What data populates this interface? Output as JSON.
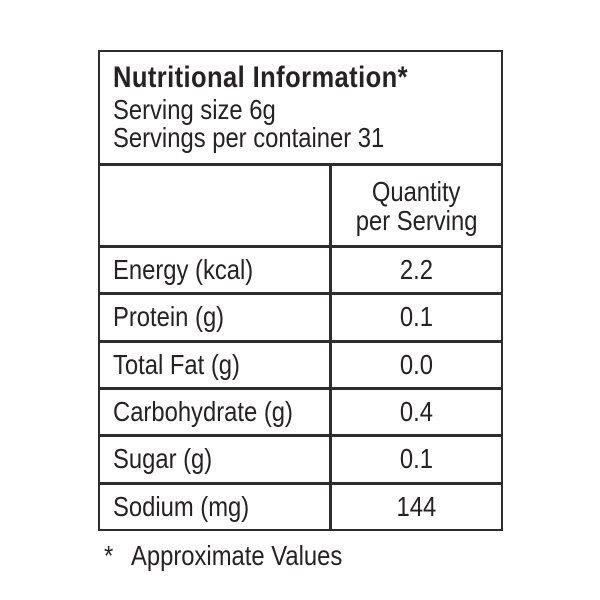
{
  "label": {
    "title": "Nutritional Information*",
    "serving_size": "Serving size 6g",
    "servings_per_container": "Servings per container 31",
    "column_header_line1": "Quantity",
    "column_header_line2": "per Serving",
    "rows": [
      {
        "label": "Energy (kcal)",
        "value": "2.2"
      },
      {
        "label": "Protein (g)",
        "value": "0.1"
      },
      {
        "label": "Total Fat (g)",
        "value": "0.0"
      },
      {
        "label": "Carbohydrate (g)",
        "value": "0.4"
      },
      {
        "label": "Sugar (g)",
        "value": "0.1"
      },
      {
        "label": "Sodium (mg)",
        "value": "144"
      }
    ],
    "footnote_marker": "*",
    "footnote_text": "Approximate Values"
  },
  "colors": {
    "text": "#262223",
    "border": "#302c2d",
    "background": "#ffffff"
  }
}
